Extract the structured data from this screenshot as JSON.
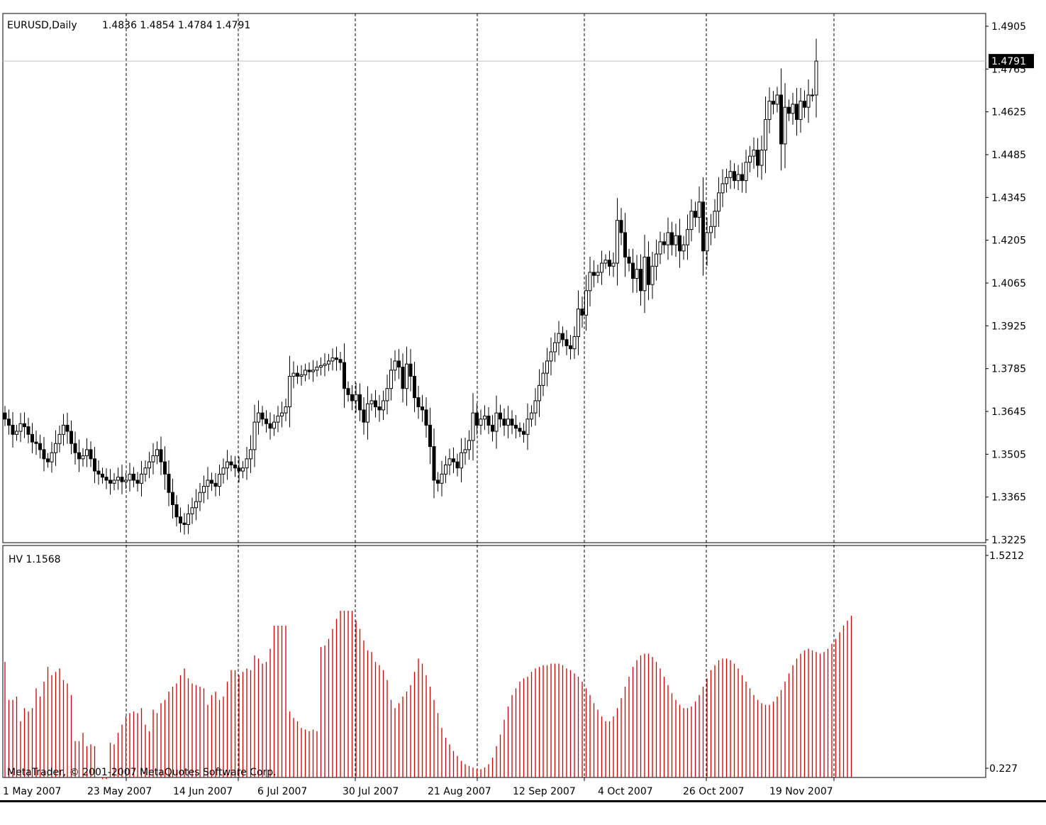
{
  "header": {
    "symbol": "EURUSD,Daily",
    "ohlc": "1.4836 1.4854 1.4784 1.4791"
  },
  "indicator": {
    "label": "HV 1.1568"
  },
  "copyright": "MetaTrader, © 2001-2007 MetaQuotes Software Corp.",
  "colors": {
    "background": "#ffffff",
    "candle": "#000000",
    "histogram": "#cc0000",
    "current_price_line": "#c0c0c0",
    "price_tag_bg": "#000000",
    "price_tag_fg": "#ffffff"
  },
  "chart_data": [
    {
      "type": "candlestick",
      "title": "EURUSD,Daily",
      "ylim": [
        1.3225,
        1.4905
      ],
      "y_ticks": [
        "1.4905",
        "1.4765",
        "1.4625",
        "1.4485",
        "1.4345",
        "1.4205",
        "1.4065",
        "1.3925",
        "1.3785",
        "1.3645",
        "1.3505",
        "1.3365",
        "1.3225"
      ],
      "current_price": "1.4791",
      "x_ticks": [
        "1 May 2007",
        "23 May 2007",
        "14 Jun 2007",
        "6 Jul 2007",
        "30 Jul 2007",
        "21 Aug 2007",
        "12 Sep 2007",
        "4 Oct 2007",
        "26 Oct 2007",
        "19 Nov 2007"
      ],
      "closes": [
        1.362,
        1.36,
        1.357,
        1.358,
        1.3605,
        1.3595,
        1.357,
        1.3545,
        1.354,
        1.352,
        1.349,
        1.348,
        1.351,
        1.354,
        1.357,
        1.36,
        1.358,
        1.354,
        1.351,
        1.349,
        1.35,
        1.352,
        1.349,
        1.345,
        1.344,
        1.343,
        1.342,
        1.341,
        1.342,
        1.343,
        1.3415,
        1.342,
        1.344,
        1.342,
        1.341,
        1.344,
        1.346,
        1.348,
        1.35,
        1.352,
        1.348,
        1.344,
        1.338,
        1.334,
        1.33,
        1.328,
        1.3275,
        1.331,
        1.333,
        1.335,
        1.338,
        1.34,
        1.342,
        1.341,
        1.34,
        1.344,
        1.346,
        1.348,
        1.347,
        1.346,
        1.345,
        1.346,
        1.349,
        1.352,
        1.361,
        1.364,
        1.362,
        1.3605,
        1.359,
        1.361,
        1.363,
        1.364,
        1.366,
        1.376,
        1.377,
        1.376,
        1.3765,
        1.378,
        1.3775,
        1.378,
        1.379,
        1.3795,
        1.38,
        1.381,
        1.382,
        1.3815,
        1.3805,
        1.372,
        1.37,
        1.368,
        1.37,
        1.365,
        1.361,
        1.367,
        1.368,
        1.366,
        1.365,
        1.368,
        1.372,
        1.378,
        1.381,
        1.379,
        1.372,
        1.38,
        1.376,
        1.369,
        1.366,
        1.365,
        1.36,
        1.353,
        1.342,
        1.341,
        1.344,
        1.347,
        1.349,
        1.348,
        1.346,
        1.351,
        1.352,
        1.355,
        1.364,
        1.36,
        1.362,
        1.363,
        1.36,
        1.358,
        1.364,
        1.362,
        1.36,
        1.362,
        1.36,
        1.359,
        1.358,
        1.357,
        1.362,
        1.364,
        1.368,
        1.373,
        1.377,
        1.381,
        1.384,
        1.387,
        1.39,
        1.388,
        1.386,
        1.385,
        1.389,
        1.398,
        1.396,
        1.404,
        1.41,
        1.409,
        1.41,
        1.413,
        1.414,
        1.412,
        1.413,
        1.427,
        1.423,
        1.415,
        1.413,
        1.408,
        1.411,
        1.404,
        1.415,
        1.406,
        1.412,
        1.416,
        1.42,
        1.419,
        1.423,
        1.419,
        1.422,
        1.417,
        1.419,
        1.424,
        1.43,
        1.428,
        1.433,
        1.417,
        1.423,
        1.425,
        1.43,
        1.436,
        1.439,
        1.441,
        1.443,
        1.44,
        1.442,
        1.44,
        1.446,
        1.448,
        1.45,
        1.445,
        1.45,
        1.46,
        1.466,
        1.465,
        1.468,
        1.452,
        1.464,
        1.462,
        1.465,
        1.46,
        1.466,
        1.464,
        1.468,
        1.468,
        1.4791
      ],
      "hv_ylim": [
        0.227,
        1.5212
      ],
      "hv_y_ticks": [
        "1.5212",
        "0.227"
      ],
      "hv_values": [
        0.88,
        0.65,
        0.65,
        0.67,
        0.52,
        0.6,
        0.58,
        0.6,
        0.72,
        0.67,
        0.76,
        0.85,
        0.8,
        0.82,
        0.84,
        0.77,
        0.75,
        0.68,
        0.4,
        0.4,
        0.45,
        0.37,
        0.38,
        0.37,
        0.18,
        0.17,
        0.17,
        0.39,
        0.38,
        0.45,
        0.5,
        0.55,
        0.57,
        0.58,
        0.57,
        0.6,
        0.5,
        0.46,
        0.59,
        0.57,
        0.63,
        0.65,
        0.7,
        0.73,
        0.75,
        0.8,
        0.84,
        0.78,
        0.75,
        0.74,
        0.73,
        0.72,
        0.62,
        0.68,
        0.7,
        0.65,
        0.67,
        0.76,
        0.83,
        0.83,
        0.8,
        0.82,
        0.84,
        0.83,
        0.92,
        0.9,
        0.87,
        0.88,
        0.96,
        1.1,
        1.1,
        1.1,
        1.1,
        0.58,
        0.54,
        0.52,
        0.48,
        0.47,
        0.46,
        0.47,
        0.46,
        0.97,
        0.98,
        1.02,
        1.08,
        1.14,
        1.19,
        1.19,
        1.19,
        1.19,
        1.13,
        1.08,
        1.01,
        0.95,
        0.94,
        0.88,
        0.86,
        0.83,
        0.77,
        0.65,
        0.6,
        0.63,
        0.67,
        0.7,
        0.74,
        0.82,
        0.9,
        0.87,
        0.8,
        0.73,
        0.65,
        0.57,
        0.48,
        0.42,
        0.38,
        0.34,
        0.31,
        0.28,
        0.26,
        0.25,
        0.24,
        0.23,
        0.23,
        0.24,
        0.26,
        0.3,
        0.37,
        0.44,
        0.53,
        0.61,
        0.68,
        0.72,
        0.76,
        0.78,
        0.79,
        0.82,
        0.84,
        0.85,
        0.86,
        0.86,
        0.87,
        0.87,
        0.87,
        0.86,
        0.84,
        0.83,
        0.81,
        0.79,
        0.76,
        0.72,
        0.68,
        0.63,
        0.59,
        0.55,
        0.52,
        0.52,
        0.55,
        0.6,
        0.66,
        0.73,
        0.79,
        0.85,
        0.89,
        0.92,
        0.93,
        0.93,
        0.91,
        0.88,
        0.84,
        0.79,
        0.74,
        0.69,
        0.65,
        0.62,
        0.6,
        0.6,
        0.61,
        0.64,
        0.68,
        0.73,
        0.78,
        0.83,
        0.86,
        0.89,
        0.9,
        0.9,
        0.89,
        0.87,
        0.84,
        0.8,
        0.76,
        0.72,
        0.68,
        0.65,
        0.63,
        0.62,
        0.62,
        0.64,
        0.67,
        0.71,
        0.76,
        0.81,
        0.86,
        0.9,
        0.93,
        0.95,
        0.96,
        0.95,
        0.94,
        0.93,
        0.94,
        0.96,
        0.99,
        1.02,
        1.06,
        1.1,
        1.13,
        1.16
      ]
    }
  ]
}
